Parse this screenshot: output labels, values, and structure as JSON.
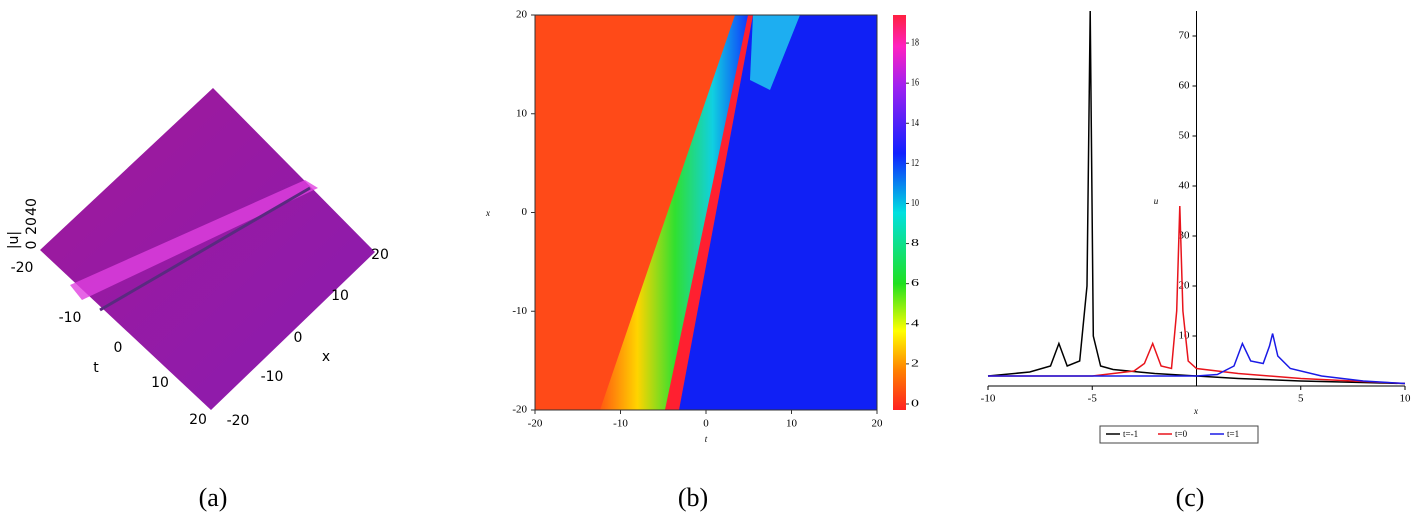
{
  "chart_data": [
    {
      "type": "surface",
      "label": "(a)",
      "xlabel": "t",
      "ylabel": "x",
      "zlabel": "|u|",
      "xticks": [
        -20,
        -10,
        0,
        10,
        20
      ],
      "yticks": [
        -20,
        -10,
        0,
        10,
        20
      ],
      "zticks": [
        0,
        20,
        40
      ]
    },
    {
      "type": "heatmap",
      "label": "(b)",
      "xlabel": "t",
      "ylabel": "x",
      "xlim": [
        -20,
        20
      ],
      "ylim": [
        -20,
        20
      ],
      "xticks": [
        -20,
        -10,
        0,
        10,
        20
      ],
      "yticks": [
        -20,
        -10,
        0,
        10,
        20
      ],
      "clim": [
        -0.3,
        19.4
      ],
      "cticks": [
        0,
        2,
        4,
        6,
        8,
        10,
        12,
        14,
        16,
        18
      ]
    },
    {
      "type": "line",
      "label": "(c)",
      "xlabel": "x",
      "ylabel": "u",
      "xlim": [
        -10,
        10
      ],
      "ylim": [
        0,
        75
      ],
      "xticks": [
        -10,
        -5,
        5,
        10
      ],
      "yticks": [
        10,
        20,
        30,
        40,
        50,
        60,
        70
      ],
      "series": [
        {
          "name": "t=-1",
          "color": "#000000",
          "x": [
            -10,
            -8,
            -7,
            -6.6,
            -6.2,
            -5.6,
            -5.25,
            -5.1,
            -4.95,
            -4.6,
            -4,
            -2,
            0,
            2,
            5,
            10
          ],
          "values": [
            2,
            2.8,
            4,
            8.5,
            4,
            5,
            20,
            75,
            10,
            4,
            3.3,
            2.5,
            2,
            1.5,
            1,
            0.5
          ]
        },
        {
          "name": "t=0",
          "color": "#e8141c",
          "x": [
            -10,
            -5,
            -3,
            -2.5,
            -2.1,
            -1.7,
            -1.2,
            -0.95,
            -0.8,
            -0.65,
            -0.4,
            0,
            2,
            5,
            10
          ],
          "values": [
            2,
            2,
            3,
            4.5,
            8.5,
            4,
            3.5,
            15,
            36,
            15,
            5,
            3.5,
            2.5,
            1.5,
            0.5
          ]
        },
        {
          "name": "t=1",
          "color": "#1a1ae6",
          "x": [
            -10,
            0,
            1,
            1.8,
            2.2,
            2.6,
            3.2,
            3.5,
            3.65,
            3.9,
            4.5,
            6,
            8,
            10
          ],
          "values": [
            2,
            2,
            2.3,
            4,
            8.5,
            5,
            4.5,
            8,
            10.5,
            6,
            3.5,
            2,
            1,
            0.5
          ]
        }
      ]
    }
  ]
}
